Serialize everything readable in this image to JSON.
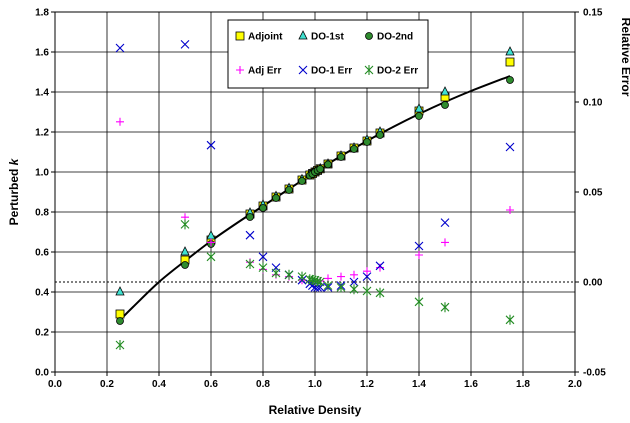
{
  "chart_data": {
    "type": "scatter",
    "xlabel": "Relative Density",
    "ylabel_prefix": "Perturbed ",
    "ylabel_italic": "k",
    "y2label": "Relative Error",
    "xlim": [
      0.0,
      2.0
    ],
    "ylim": [
      0.0,
      1.8
    ],
    "y2lim": [
      -0.05,
      0.15
    ],
    "xticks": [
      "0.0",
      "0.2",
      "0.4",
      "0.6",
      "0.8",
      "1.0",
      "1.2",
      "1.4",
      "1.6",
      "1.8",
      "2.0"
    ],
    "yticks": [
      "0.0",
      "0.2",
      "0.4",
      "0.6",
      "0.8",
      "1.0",
      "1.2",
      "1.4",
      "1.6",
      "1.8"
    ],
    "y2ticks": [
      "-0.05",
      "0.00",
      "0.05",
      "0.10",
      "0.15"
    ],
    "grid": true,
    "legend_position": "top-center",
    "reference_curve": {
      "x": [
        0.25,
        0.3,
        0.4,
        0.5,
        0.6,
        0.7,
        0.8,
        0.9,
        1.0,
        1.1,
        1.2,
        1.3,
        1.4,
        1.5,
        1.6,
        1.75
      ],
      "y": [
        0.26,
        0.325,
        0.45,
        0.555,
        0.655,
        0.745,
        0.83,
        0.915,
        1.0,
        1.08,
        1.155,
        1.225,
        1.29,
        1.35,
        1.405,
        1.48
      ]
    },
    "series": [
      {
        "name": "Adjoint",
        "axis": "left",
        "marker": "square",
        "color": "#ffff00",
        "stroke": "#000000",
        "x": [
          0.25,
          0.5,
          0.6,
          0.75,
          0.8,
          0.85,
          0.9,
          0.95,
          0.98,
          0.99,
          1.0,
          1.01,
          1.02,
          1.05,
          1.1,
          1.15,
          1.2,
          1.25,
          1.4,
          1.5,
          1.75
        ],
        "y": [
          0.29,
          0.56,
          0.66,
          0.79,
          0.83,
          0.875,
          0.915,
          0.96,
          0.985,
          0.992,
          1.0,
          1.008,
          1.016,
          1.04,
          1.08,
          1.12,
          1.155,
          1.195,
          1.305,
          1.375,
          1.55
        ]
      },
      {
        "name": "DO-1st",
        "axis": "left",
        "marker": "triangle",
        "color": "#40e0d0",
        "stroke": "#000000",
        "x": [
          0.25,
          0.5,
          0.6,
          0.75,
          0.8,
          0.85,
          0.9,
          0.95,
          0.98,
          0.99,
          1.0,
          1.01,
          1.02,
          1.05,
          1.1,
          1.15,
          1.2,
          1.25,
          1.4,
          1.5,
          1.75
        ],
        "y": [
          0.4,
          0.6,
          0.68,
          0.795,
          0.835,
          0.878,
          0.918,
          0.962,
          0.987,
          0.994,
          1.0,
          1.008,
          1.016,
          1.04,
          1.08,
          1.12,
          1.16,
          1.2,
          1.315,
          1.4,
          1.6
        ]
      },
      {
        "name": "DO-2nd",
        "axis": "left",
        "marker": "circle",
        "color": "#2e8b2e",
        "stroke": "#000000",
        "x": [
          0.25,
          0.5,
          0.6,
          0.75,
          0.8,
          0.85,
          0.9,
          0.95,
          0.98,
          0.99,
          1.0,
          1.01,
          1.02,
          1.05,
          1.1,
          1.15,
          1.2,
          1.25,
          1.4,
          1.5,
          1.75
        ],
        "y": [
          0.255,
          0.535,
          0.64,
          0.775,
          0.82,
          0.87,
          0.91,
          0.955,
          0.982,
          0.99,
          1.0,
          1.008,
          1.015,
          1.038,
          1.075,
          1.115,
          1.15,
          1.185,
          1.28,
          1.335,
          1.46
        ]
      },
      {
        "name": "Adj Err",
        "axis": "right",
        "marker": "plus",
        "color": "#ff00ff",
        "x": [
          0.25,
          0.5,
          0.6,
          0.75,
          0.8,
          0.85,
          0.9,
          0.95,
          0.98,
          0.99,
          1.0,
          1.01,
          1.02,
          1.05,
          1.1,
          1.15,
          1.2,
          1.25,
          1.4,
          1.5,
          1.75
        ],
        "y": [
          0.089,
          0.036,
          0.022,
          0.011,
          0.007,
          0.004,
          0.003,
          0.001,
          0.0005,
          0.0003,
          0.0,
          0.0003,
          0.0006,
          0.002,
          0.003,
          0.004,
          0.006,
          0.008,
          0.015,
          0.022,
          0.04
        ]
      },
      {
        "name": "DO-1 Err",
        "axis": "right",
        "marker": "x",
        "color": "#0000cc",
        "x": [
          0.25,
          0.5,
          0.6,
          0.75,
          0.8,
          0.85,
          0.9,
          0.95,
          0.98,
          0.99,
          1.0,
          1.01,
          1.02,
          1.05,
          1.1,
          1.15,
          1.2,
          1.25,
          1.4,
          1.5,
          1.75
        ],
        "y": [
          0.13,
          0.132,
          0.076,
          0.026,
          0.014,
          0.008,
          0.004,
          0.001,
          -0.001,
          -0.002,
          -0.003,
          -0.003,
          -0.003,
          -0.003,
          -0.002,
          0.0,
          0.003,
          0.009,
          0.02,
          0.033,
          0.075
        ]
      },
      {
        "name": "DO-2 Err",
        "axis": "right",
        "marker": "star",
        "color": "#228b22",
        "x": [
          0.25,
          0.5,
          0.6,
          0.75,
          0.8,
          0.85,
          0.9,
          0.95,
          0.98,
          0.99,
          1.0,
          1.01,
          1.02,
          1.05,
          1.1,
          1.15,
          1.2,
          1.25,
          1.4,
          1.5,
          1.75
        ],
        "y": [
          -0.035,
          0.032,
          0.014,
          0.01,
          0.008,
          0.005,
          0.004,
          0.003,
          0.0015,
          0.0012,
          0.001,
          0.0005,
          0.0,
          -0.002,
          -0.003,
          -0.004,
          -0.005,
          -0.006,
          -0.011,
          -0.014,
          -0.021
        ]
      }
    ]
  }
}
